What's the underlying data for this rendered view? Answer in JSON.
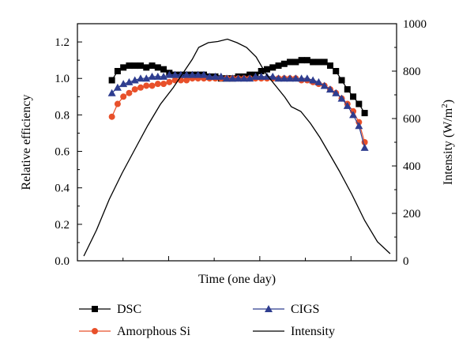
{
  "chart_data": {
    "type": "line",
    "xlabel": "Time (one day)",
    "ylabel": "Relative efficiency",
    "y2label_prefix": "Intensity (W/m",
    "y2label_sup": "2",
    "y2label_suffix": ")",
    "ylim": [
      0,
      1.3
    ],
    "y2lim": [
      0,
      1000
    ],
    "yticks": [
      "0.0",
      "0.2",
      "0.4",
      "0.6",
      "0.8",
      "1.0",
      "1.2"
    ],
    "y2ticks": [
      "0",
      "200",
      "400",
      "600",
      "800",
      "1000"
    ],
    "xlim": [
      0,
      1
    ],
    "grid": false,
    "legend_position": "bottom",
    "series": [
      {
        "name": "DSC",
        "marker": "square",
        "color": "#000000",
        "axis": "left",
        "x": [
          0.108,
          0.126,
          0.144,
          0.162,
          0.18,
          0.198,
          0.216,
          0.234,
          0.252,
          0.27,
          0.288,
          0.306,
          0.324,
          0.342,
          0.36,
          0.378,
          0.396,
          0.414,
          0.432,
          0.45,
          0.468,
          0.486,
          0.504,
          0.522,
          0.54,
          0.558,
          0.576,
          0.594,
          0.612,
          0.63,
          0.648,
          0.666,
          0.684,
          0.702,
          0.72,
          0.738,
          0.756,
          0.774,
          0.792,
          0.81,
          0.828,
          0.846,
          0.864,
          0.882,
          0.9
        ],
        "values": [
          0.99,
          1.04,
          1.06,
          1.07,
          1.07,
          1.07,
          1.06,
          1.07,
          1.06,
          1.05,
          1.03,
          1.02,
          1.02,
          1.02,
          1.02,
          1.02,
          1.02,
          1.01,
          1.01,
          1.0,
          1.0,
          1.0,
          1.01,
          1.01,
          1.02,
          1.02,
          1.04,
          1.05,
          1.06,
          1.07,
          1.08,
          1.09,
          1.09,
          1.1,
          1.1,
          1.09,
          1.09,
          1.09,
          1.07,
          1.04,
          0.99,
          0.94,
          0.9,
          0.86,
          0.81
        ]
      },
      {
        "name": "Amorphous Si",
        "marker": "circle",
        "color": "#e8502a",
        "axis": "left",
        "x": [
          0.108,
          0.126,
          0.144,
          0.162,
          0.18,
          0.198,
          0.216,
          0.234,
          0.252,
          0.27,
          0.288,
          0.306,
          0.324,
          0.342,
          0.36,
          0.378,
          0.396,
          0.414,
          0.432,
          0.45,
          0.468,
          0.486,
          0.504,
          0.522,
          0.54,
          0.558,
          0.576,
          0.594,
          0.612,
          0.63,
          0.648,
          0.666,
          0.684,
          0.702,
          0.72,
          0.738,
          0.756,
          0.774,
          0.792,
          0.81,
          0.828,
          0.846,
          0.864,
          0.882,
          0.9
        ],
        "values": [
          0.79,
          0.86,
          0.9,
          0.92,
          0.94,
          0.95,
          0.96,
          0.96,
          0.97,
          0.97,
          0.98,
          0.99,
          0.99,
          0.99,
          1.0,
          1.0,
          1.0,
          1.0,
          1.0,
          1.0,
          1.0,
          1.0,
          1.0,
          1.0,
          1.0,
          1.0,
          1.0,
          1.0,
          1.0,
          1.0,
          1.0,
          1.0,
          1.0,
          0.99,
          0.99,
          0.98,
          0.97,
          0.96,
          0.94,
          0.92,
          0.89,
          0.86,
          0.82,
          0.76,
          0.65
        ]
      },
      {
        "name": "CIGS",
        "marker": "triangle",
        "color": "#2e3d8f",
        "axis": "left",
        "x": [
          0.108,
          0.126,
          0.144,
          0.162,
          0.18,
          0.198,
          0.216,
          0.234,
          0.252,
          0.27,
          0.288,
          0.306,
          0.324,
          0.342,
          0.36,
          0.378,
          0.396,
          0.414,
          0.432,
          0.45,
          0.468,
          0.486,
          0.504,
          0.522,
          0.54,
          0.558,
          0.576,
          0.594,
          0.612,
          0.63,
          0.648,
          0.666,
          0.684,
          0.702,
          0.72,
          0.738,
          0.756,
          0.774,
          0.792,
          0.81,
          0.828,
          0.846,
          0.864,
          0.882,
          0.9
        ],
        "values": [
          0.92,
          0.95,
          0.97,
          0.98,
          0.99,
          1.0,
          1.0,
          1.01,
          1.01,
          1.01,
          1.02,
          1.02,
          1.02,
          1.02,
          1.02,
          1.02,
          1.02,
          1.01,
          1.01,
          1.01,
          1.0,
          1.0,
          1.0,
          1.0,
          1.0,
          1.01,
          1.01,
          1.01,
          1.01,
          1.0,
          1.0,
          1.0,
          1.0,
          1.0,
          1.0,
          0.99,
          0.98,
          0.96,
          0.94,
          0.92,
          0.89,
          0.85,
          0.8,
          0.74,
          0.62
        ]
      },
      {
        "name": "Intensity",
        "marker": "none",
        "color": "#000000",
        "axis": "right",
        "x": [
          0.02,
          0.06,
          0.1,
          0.14,
          0.18,
          0.22,
          0.26,
          0.3,
          0.33,
          0.36,
          0.38,
          0.41,
          0.44,
          0.47,
          0.5,
          0.53,
          0.56,
          0.59,
          0.62,
          0.65,
          0.67,
          0.7,
          0.73,
          0.76,
          0.79,
          0.82,
          0.86,
          0.9,
          0.94,
          0.98
        ],
        "values": [
          20,
          130,
          260,
          370,
          470,
          570,
          660,
          730,
          790,
          850,
          900,
          920,
          925,
          935,
          920,
          900,
          860,
          790,
          740,
          690,
          650,
          630,
          580,
          520,
          450,
          380,
          280,
          170,
          80,
          30
        ]
      }
    ]
  }
}
